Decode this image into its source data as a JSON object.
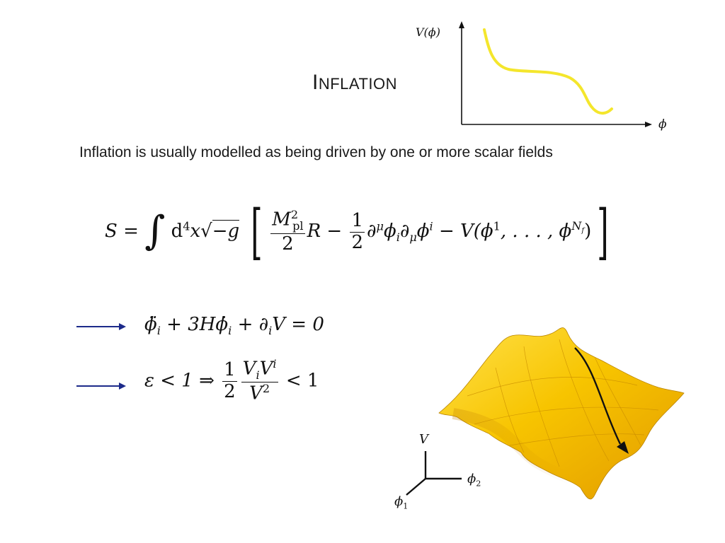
{
  "title": {
    "first_letter": "I",
    "rest": "NFLATION"
  },
  "subtitle": "Inflation is usually modelled as being driven by one or more scalar fields",
  "potential_plot": {
    "y_axis_label": "V(ϕ)",
    "x_axis_label": "ϕ",
    "curve_color": "#f4e62c"
  },
  "action": {
    "lhs": "S =",
    "measure": "d",
    "measure_sup": "4",
    "x": "x",
    "sqrt_arg": "−g",
    "mpl": "M",
    "mpl_sup": "2",
    "mpl_sub": "pl",
    "den2": "2",
    "R_term": "R −",
    "one": "1",
    "two": "2",
    "kinetic": "∂",
    "kinetic_sup": "μ",
    "phi_i": "ϕ",
    "sub_i": "i",
    "partial_mu": "∂",
    "sub_mu": "μ",
    "phi_up": "ϕ",
    "sup_i": "i",
    "potential": "− V(ϕ",
    "pot_sup1": "1",
    "dots": ", . . . , ϕ",
    "pot_sup_N": "N",
    "pot_sup_f": "f",
    "close": ")"
  },
  "eom": {
    "text_a": "ϕ̈",
    "sub_i": "i",
    "text_b": "+ 3H",
    "text_c": "ϕ̇",
    "sub_i2": "i",
    "text_d": "+ ∂",
    "sub_i3": "i",
    "text_e": "V = 0"
  },
  "slow_roll": {
    "lhs": "ε < 1 ⇒",
    "one": "1",
    "two": "2",
    "num_V": "V",
    "num_sub": "i",
    "num_V2": "V",
    "num_sup": "i",
    "den_V": "V",
    "den_sup": "2",
    "rhs": "< 1"
  },
  "surface": {
    "axis_V": "V",
    "axis_phi2": "ϕ",
    "axis_phi2_sub": "2",
    "axis_phi1": "ϕ",
    "axis_phi1_sub": "1",
    "surface_color": "#f5c300"
  },
  "colors": {
    "arrow": "#1c2a8a",
    "text": "#111111"
  }
}
